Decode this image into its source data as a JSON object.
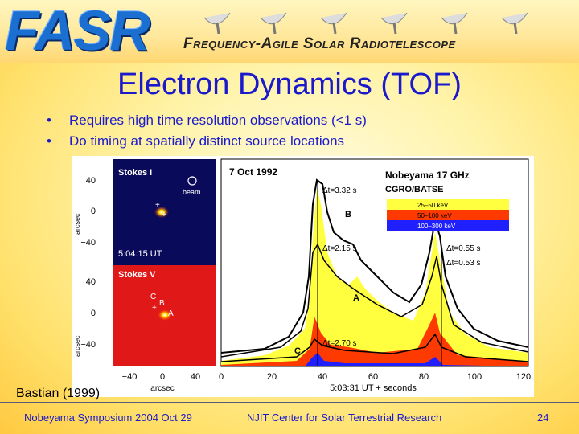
{
  "banner": {
    "logo": "FASR",
    "subtitle": "Frequency-Agile Solar Radiotelescope"
  },
  "slide": {
    "title": "Electron Dynamics (TOF)",
    "bullets": [
      "Requires high time resolution observations (<1 s)",
      "Do timing at spatially distinct source locations"
    ],
    "credit": "Bastian (1999)"
  },
  "figure": {
    "image_i": {
      "label": "Stokes I",
      "beam_label": "beam",
      "time": "5:04:15 UT",
      "ylabel": "arcsec",
      "yticks": [
        "40",
        "0",
        "−40"
      ]
    },
    "image_v": {
      "label": "Stokes V",
      "source_labels": [
        "C",
        "B",
        "A"
      ],
      "ylabel": "arcsec",
      "yticks": [
        "40",
        "0",
        "−40"
      ]
    },
    "xaxis_images": {
      "ticks": [
        "−40",
        "0",
        "40"
      ],
      "label": "arcsec"
    },
    "plot": {
      "date": "7 Oct 1992",
      "instrument": "Nobeyama 17 GHz",
      "instrument2": "CGRO/BATSE",
      "legend": [
        {
          "label": "25–50 keV",
          "color": "#ffff30"
        },
        {
          "label": "50–100 keV",
          "color": "#ff3000"
        },
        {
          "label": "100–300 keV",
          "color": "#2020ff"
        }
      ],
      "annotations": [
        "Δt=3.32 s",
        "Δt=2.15 s",
        "Δt=0.55 s",
        "Δt=0.53 s",
        "Δt=2.70 s"
      ],
      "curve_labels": [
        "B",
        "A",
        "C"
      ],
      "xticks": [
        "0",
        "20",
        "40",
        "60",
        "80",
        "100",
        "120"
      ],
      "xlabel": "5:03:31 UT + seconds"
    }
  },
  "footer": {
    "left": "Nobeyama Symposium  2004 Oct 29",
    "center": "NJIT Center for Solar Terrestrial Research",
    "page": "24"
  }
}
